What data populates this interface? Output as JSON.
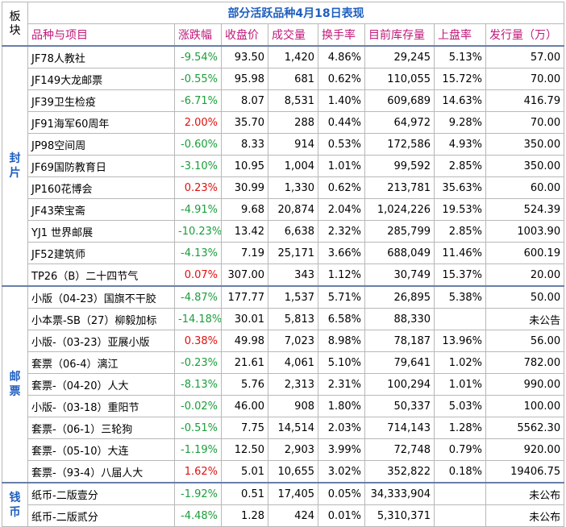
{
  "title": "部分活跃品种4月18日表现",
  "corner_label": "板块",
  "headers": [
    "品种与项目",
    "涨跌幅",
    "收盘价",
    "成交量",
    "换手率",
    "目前库存量",
    "上盘率",
    "发行量（万）"
  ],
  "groups": [
    {
      "sector": "封片",
      "rows": [
        {
          "name": "JF78人教社",
          "change": "-9.54%",
          "dir": "down",
          "close": "93.50",
          "volume": "1,420",
          "turnover": "4.86%",
          "stock": "29,245",
          "listing": "5.13%",
          "issue": "57.00"
        },
        {
          "name": "JF149大龙邮票",
          "change": "-0.55%",
          "dir": "down",
          "close": "95.98",
          "volume": "681",
          "turnover": "0.62%",
          "stock": "110,055",
          "listing": "15.72%",
          "issue": "70.00"
        },
        {
          "name": "JF39卫生检疫",
          "change": "-6.71%",
          "dir": "down",
          "close": "8.07",
          "volume": "8,531",
          "turnover": "1.40%",
          "stock": "609,689",
          "listing": "14.63%",
          "issue": "416.79"
        },
        {
          "name": "JF91海军60周年",
          "change": "2.00%",
          "dir": "up",
          "close": "35.70",
          "volume": "288",
          "turnover": "0.44%",
          "stock": "64,972",
          "listing": "9.28%",
          "issue": "70.00"
        },
        {
          "name": "JP98空间周",
          "change": "-0.60%",
          "dir": "down",
          "close": "8.33",
          "volume": "914",
          "turnover": "0.53%",
          "stock": "172,586",
          "listing": "4.93%",
          "issue": "350.00"
        },
        {
          "name": "JF69国防教育日",
          "change": "-3.10%",
          "dir": "down",
          "close": "10.95",
          "volume": "1,004",
          "turnover": "1.01%",
          "stock": "99,592",
          "listing": "2.85%",
          "issue": "350.00"
        },
        {
          "name": "JP160花博会",
          "change": "0.23%",
          "dir": "up",
          "close": "30.99",
          "volume": "1,330",
          "turnover": "0.62%",
          "stock": "213,781",
          "listing": "35.63%",
          "issue": "60.00"
        },
        {
          "name": "JF43荣宝斋",
          "change": "-4.91%",
          "dir": "down",
          "close": "9.68",
          "volume": "20,874",
          "turnover": "2.04%",
          "stock": "1,024,226",
          "listing": "19.53%",
          "issue": "524.39"
        },
        {
          "name": "YJ1 世界邮展",
          "change": "-10.23%",
          "dir": "down",
          "close": "13.42",
          "volume": "6,638",
          "turnover": "2.32%",
          "stock": "285,799",
          "listing": "2.85%",
          "issue": "1003.90"
        },
        {
          "name": "JF52建筑师",
          "change": "-4.13%",
          "dir": "down",
          "close": "7.19",
          "volume": "25,171",
          "turnover": "3.66%",
          "stock": "688,049",
          "listing": "11.46%",
          "issue": "600.19"
        },
        {
          "name": "TP26（B）二十四节气",
          "change": "0.07%",
          "dir": "up",
          "close": "307.00",
          "volume": "343",
          "turnover": "1.12%",
          "stock": "30,749",
          "listing": "15.37%",
          "issue": "20.00"
        }
      ]
    },
    {
      "sector": "邮票",
      "rows": [
        {
          "name": "小版（04-23）国旗不干胶",
          "change": "-4.87%",
          "dir": "down",
          "close": "177.77",
          "volume": "1,537",
          "turnover": "5.71%",
          "stock": "26,895",
          "listing": "5.38%",
          "issue": "50.00"
        },
        {
          "name": "小本票-SB（27）柳毅加标",
          "change": "-14.18%",
          "dir": "down",
          "close": "30.01",
          "volume": "5,813",
          "turnover": "6.58%",
          "stock": "88,330",
          "listing": "",
          "issue": "未公告"
        },
        {
          "name": "小版-（03-23）亚展小版",
          "change": "0.38%",
          "dir": "up",
          "close": "49.98",
          "volume": "7,023",
          "turnover": "8.98%",
          "stock": "78,187",
          "listing": "13.96%",
          "issue": "56.00"
        },
        {
          "name": "套票（06-4）漓江",
          "change": "-0.23%",
          "dir": "down",
          "close": "21.61",
          "volume": "4,061",
          "turnover": "5.10%",
          "stock": "79,641",
          "listing": "1.02%",
          "issue": "782.00"
        },
        {
          "name": "套票-（04-20）人大",
          "change": "-8.13%",
          "dir": "down",
          "close": "5.76",
          "volume": "2,313",
          "turnover": "2.31%",
          "stock": "100,294",
          "listing": "1.01%",
          "issue": "990.00"
        },
        {
          "name": "小版-（03-18）重阳节",
          "change": "-0.02%",
          "dir": "down",
          "close": "46.00",
          "volume": "908",
          "turnover": "1.80%",
          "stock": "50,337",
          "listing": "5.03%",
          "issue": "100.00"
        },
        {
          "name": "套票-（06-1）三轮狗",
          "change": "-0.51%",
          "dir": "down",
          "close": "7.75",
          "volume": "14,514",
          "turnover": "2.03%",
          "stock": "714,143",
          "listing": "1.28%",
          "issue": "5562.30"
        },
        {
          "name": "套票-（05-10）大连",
          "change": "-1.19%",
          "dir": "down",
          "close": "12.50",
          "volume": "2,903",
          "turnover": "3.99%",
          "stock": "72,748",
          "listing": "0.79%",
          "issue": "920.00"
        },
        {
          "name": "套票-（93-4）八届人大",
          "change": "1.62%",
          "dir": "up",
          "close": "5.01",
          "volume": "10,655",
          "turnover": "3.02%",
          "stock": "352,822",
          "listing": "0.18%",
          "issue": "19406.75"
        }
      ]
    },
    {
      "sector": "钱币",
      "rows": [
        {
          "name": "纸币-二版壹分",
          "change": "-1.92%",
          "dir": "down",
          "close": "0.51",
          "volume": "17,405",
          "turnover": "0.05%",
          "stock": "34,333,904",
          "listing": "",
          "issue": "未公布"
        },
        {
          "name": "纸币-二版贰分",
          "change": "-4.48%",
          "dir": "down",
          "close": "1.28",
          "volume": "424",
          "turnover": "0.01%",
          "stock": "5,310,371",
          "listing": "",
          "issue": "未公布"
        }
      ]
    }
  ]
}
